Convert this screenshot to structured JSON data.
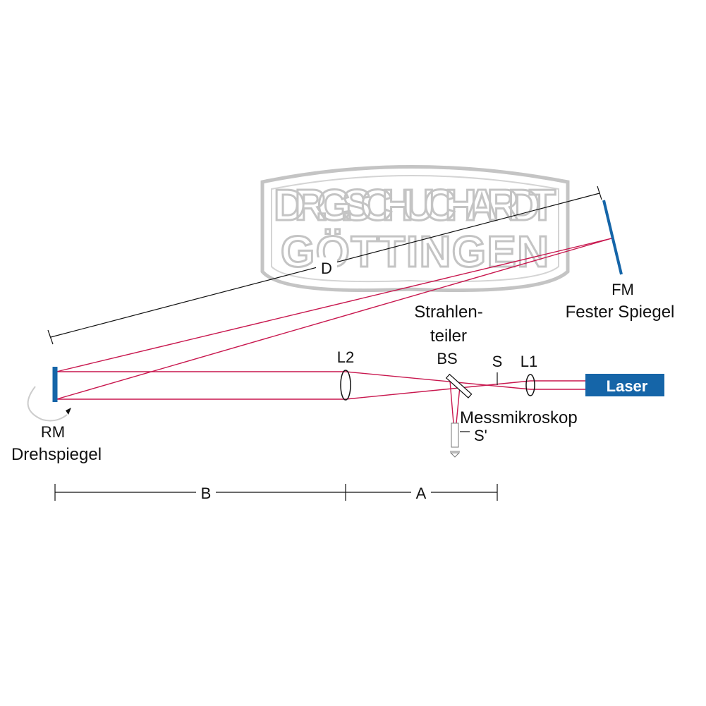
{
  "watermark": {
    "line1": "DR.G.SCHUCHARDT",
    "line2": "GÖTTINGEN"
  },
  "labels": {
    "distance_d": "D",
    "fm": "FM",
    "fm_name": "Fester Spiegel",
    "bs_name_1": "Strahlen-",
    "bs_name_2": "teiler",
    "l2": "L2",
    "bs": "BS",
    "s": "S",
    "l1": "L1",
    "laser": "Laser",
    "microscope": "Messmikroskop",
    "s_prime": "S'",
    "rm": "RM",
    "rm_name": "Drehspiegel",
    "distance_b": "B",
    "distance_a": "A"
  }
}
